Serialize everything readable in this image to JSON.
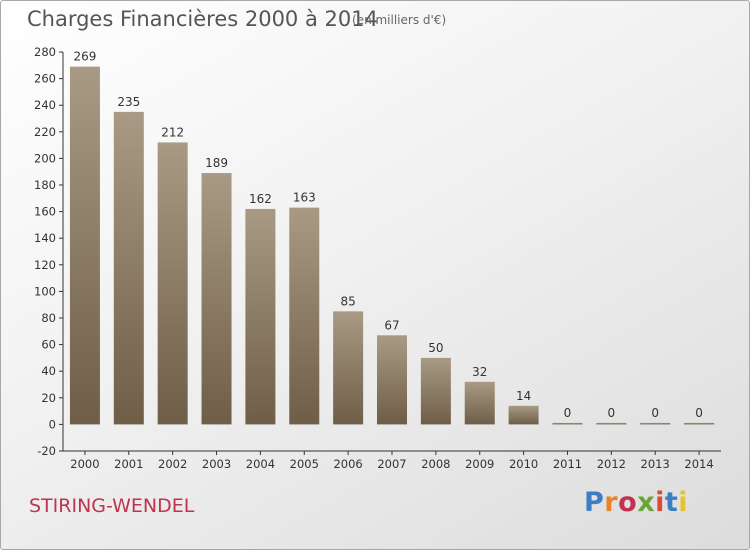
{
  "header": {
    "title": "Charges Financières 2000 à 2014",
    "unit": "(en milliers d'€)"
  },
  "footer": {
    "city": "STIRING-WENDEL",
    "brand": "Proxiti",
    "brand_colors": [
      "#3a7fc4",
      "#e8842c",
      "#c0334f",
      "#6aa53a",
      "#d94a3a",
      "#3a7fc4",
      "#e8c22c"
    ]
  },
  "colors": {
    "bar_top": "#a89a84",
    "bar_bottom": "#6f5e47",
    "axis_text": "#333333",
    "title_text": "#555555"
  },
  "chart_data": {
    "type": "bar",
    "title": "Charges Financières 2000 à 2014",
    "subtitle": "(en milliers d'€)",
    "categories": [
      "2000",
      "2001",
      "2002",
      "2003",
      "2004",
      "2005",
      "2006",
      "2007",
      "2008",
      "2009",
      "2010",
      "2011",
      "2012",
      "2013",
      "2014"
    ],
    "values": [
      269,
      235,
      212,
      189,
      162,
      163,
      85,
      67,
      50,
      32,
      14,
      0,
      0,
      0,
      0
    ],
    "ylim": [
      -20,
      280
    ],
    "yticks": [
      -20,
      0,
      20,
      40,
      60,
      80,
      100,
      120,
      140,
      160,
      180,
      200,
      220,
      240,
      260,
      280
    ],
    "grid": false,
    "data_labels": true
  }
}
